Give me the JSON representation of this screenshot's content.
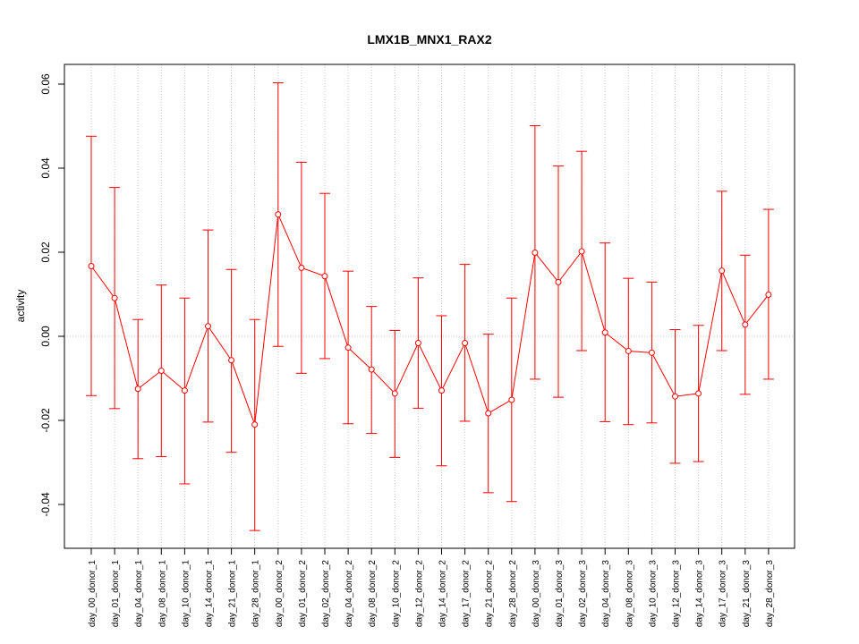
{
  "chart_data": {
    "type": "line",
    "title": "LMX1B_MNX1_RAX2",
    "xlabel": "",
    "ylabel": "activity",
    "ylim": [
      -0.05,
      0.0635
    ],
    "yticks": [
      -0.04,
      -0.02,
      0.0,
      0.02,
      0.04,
      0.06
    ],
    "ytick_labels": [
      "-0.04",
      "-0.02",
      "0.00",
      "0.02",
      "0.04",
      "0.06"
    ],
    "grid": true,
    "color": "#ff0000",
    "categories": [
      "day_00_donor_1",
      "day_01_donor_1",
      "day_04_donor_1",
      "day_08_donor_1",
      "day_10_donor_1",
      "day_14_donor_1",
      "day_21_donor_1",
      "day_28_donor_1",
      "day_00_donor_2",
      "day_01_donor_2",
      "day_02_donor_2",
      "day_04_donor_2",
      "day_08_donor_2",
      "day_10_donor_2",
      "day_12_donor_2",
      "day_14_donor_2",
      "day_17_donor_2",
      "day_21_donor_2",
      "day_28_donor_2",
      "day_00_donor_3",
      "day_01_donor_3",
      "day_02_donor_3",
      "day_04_donor_3",
      "day_08_donor_3",
      "day_10_donor_3",
      "day_12_donor_3",
      "day_14_donor_3",
      "day_17_donor_3",
      "day_21_donor_3",
      "day_28_donor_3"
    ],
    "values": [
      0.0167,
      0.0091,
      -0.0125,
      -0.0082,
      -0.0129,
      0.0024,
      -0.0057,
      -0.021,
      0.029,
      0.0163,
      0.0143,
      -0.0027,
      -0.0079,
      -0.0136,
      -0.0016,
      -0.0129,
      -0.0016,
      -0.0183,
      -0.0151,
      0.0199,
      0.0129,
      0.0202,
      0.0009,
      -0.0035,
      -0.0039,
      -0.0143,
      -0.0136,
      0.0156,
      0.0028,
      0.0099
    ],
    "upper": [
      0.0476,
      0.0354,
      0.004,
      0.0122,
      0.0091,
      0.0253,
      0.0159,
      0.004,
      0.0603,
      0.0414,
      0.034,
      0.0155,
      0.0071,
      0.0014,
      0.0139,
      0.0049,
      0.0171,
      0.0005,
      0.0091,
      0.0501,
      0.0405,
      0.044,
      0.0222,
      0.0138,
      0.0129,
      0.0016,
      0.0026,
      0.0345,
      0.0193,
      0.0302
    ],
    "lower": [
      -0.0141,
      -0.0172,
      -0.0291,
      -0.0286,
      -0.0351,
      -0.0204,
      -0.0276,
      -0.0462,
      -0.0024,
      -0.0088,
      -0.0053,
      -0.0208,
      -0.0231,
      -0.0288,
      -0.0171,
      -0.0308,
      -0.0202,
      -0.0372,
      -0.0393,
      -0.0102,
      -0.0145,
      -0.0034,
      -0.0203,
      -0.021,
      -0.0206,
      -0.0302,
      -0.0298,
      -0.0034,
      -0.0138,
      -0.0102
    ]
  }
}
